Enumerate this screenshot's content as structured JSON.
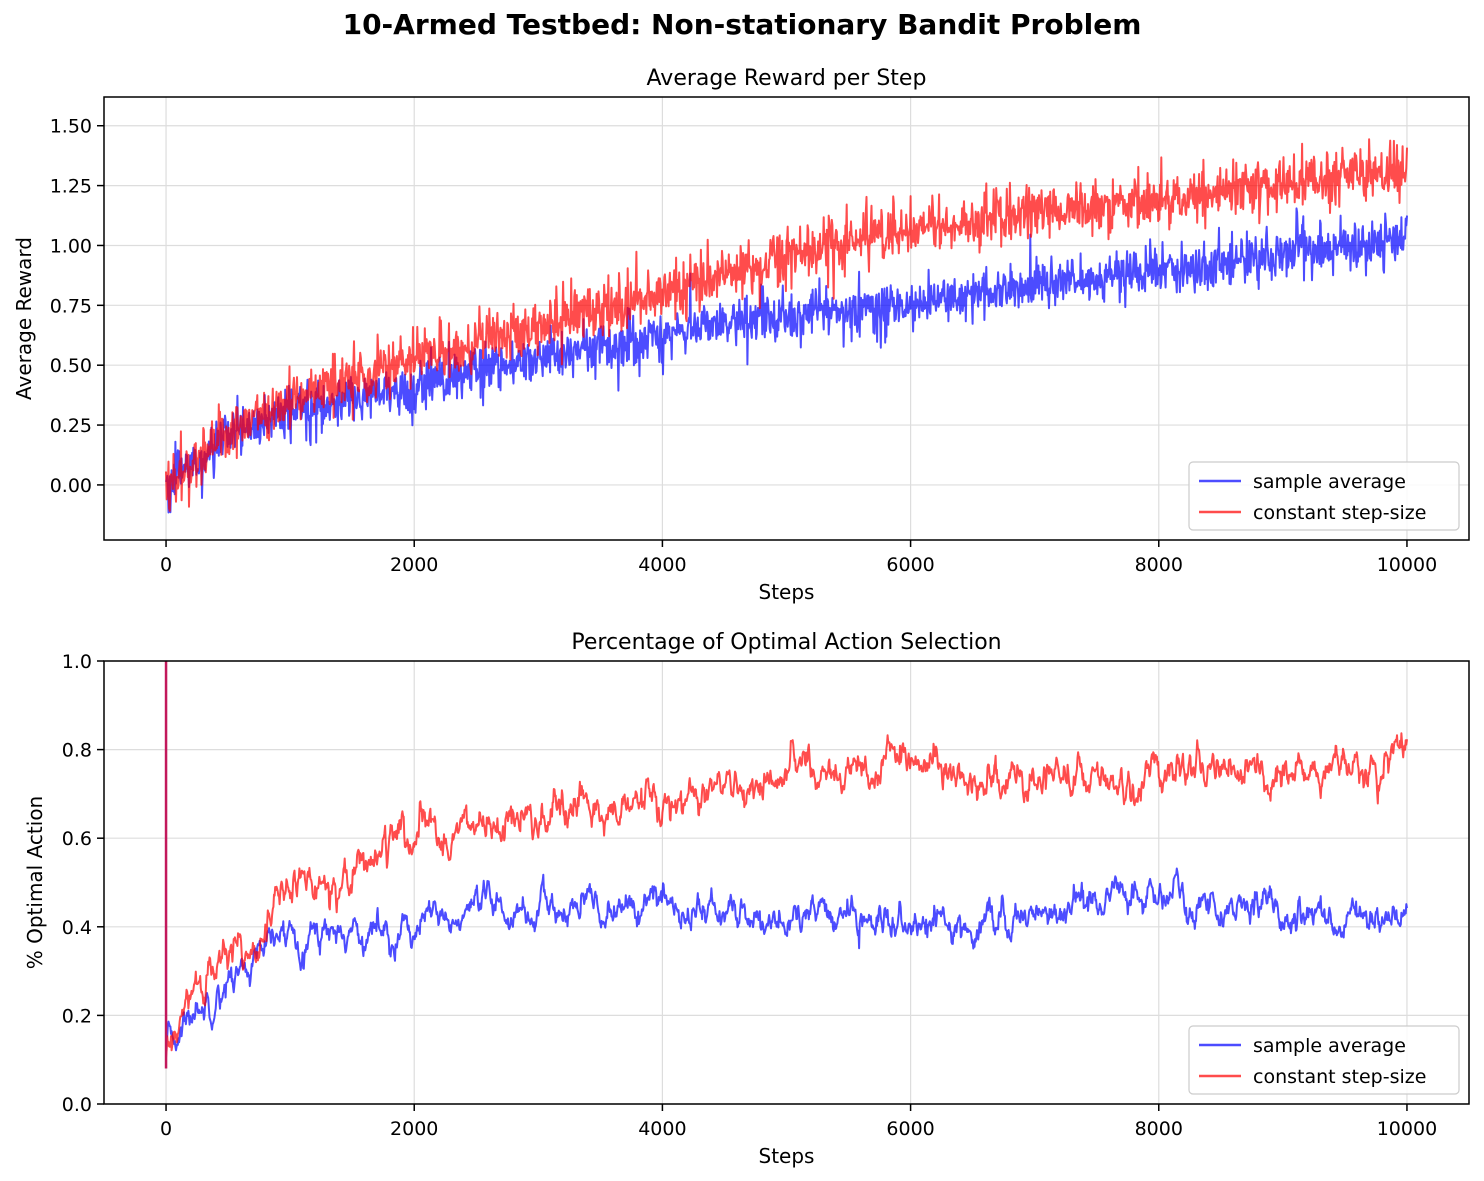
{
  "suptitle": "10-Armed Testbed: Non-stationary Bandit Problem",
  "colors": {
    "sample_average": "#0000ff",
    "constant_step_size": "#ff0000",
    "overlap": "#c2185b"
  },
  "chart_data": [
    {
      "type": "line",
      "title": "Average Reward per Step",
      "xlabel": "Steps",
      "ylabel": "Average Reward",
      "xlim": [
        -500,
        10500
      ],
      "ylim": [
        -0.23,
        1.62
      ],
      "xticks": [
        0,
        2000,
        4000,
        6000,
        8000,
        10000
      ],
      "yticks": [
        0.0,
        0.25,
        0.5,
        0.75,
        1.0,
        1.25,
        1.5
      ],
      "ytick_labels": [
        "0.00",
        "0.25",
        "0.50",
        "0.75",
        "1.00",
        "1.25",
        "1.50"
      ],
      "grid": true,
      "legend_position": "bottom-right",
      "series": [
        {
          "name": "sample average",
          "color": "#0000ff",
          "x": [
            0,
            500,
            1000,
            1500,
            2000,
            2500,
            3000,
            3500,
            4000,
            4500,
            5000,
            5500,
            6000,
            6500,
            7000,
            7500,
            8000,
            8500,
            9000,
            9500,
            10000
          ],
          "values": [
            0.0,
            0.2,
            0.3,
            0.36,
            0.4,
            0.48,
            0.53,
            0.58,
            0.63,
            0.68,
            0.7,
            0.74,
            0.76,
            0.79,
            0.84,
            0.87,
            0.9,
            0.92,
            0.97,
            1.0,
            1.03
          ],
          "noise": 0.05
        },
        {
          "name": "constant step-size",
          "color": "#ff0000",
          "x": [
            0,
            500,
            1000,
            1500,
            2000,
            2500,
            3000,
            3500,
            4000,
            4500,
            5000,
            5500,
            6000,
            6500,
            7000,
            7500,
            8000,
            8500,
            9000,
            9500,
            10000
          ],
          "values": [
            0.0,
            0.22,
            0.35,
            0.45,
            0.52,
            0.6,
            0.66,
            0.73,
            0.8,
            0.88,
            0.95,
            1.02,
            1.06,
            1.1,
            1.13,
            1.17,
            1.19,
            1.22,
            1.25,
            1.29,
            1.32
          ],
          "noise": 0.055
        }
      ]
    },
    {
      "type": "line",
      "title": "Percentage of Optimal Action Selection",
      "xlabel": "Steps",
      "ylabel": "% Optimal Action",
      "xlim": [
        -500,
        10500
      ],
      "ylim": [
        0.0,
        1.0
      ],
      "xticks": [
        0,
        2000,
        4000,
        6000,
        8000,
        10000
      ],
      "yticks": [
        0.0,
        0.2,
        0.4,
        0.6,
        0.8,
        1.0
      ],
      "ytick_labels": [
        "0.0",
        "0.2",
        "0.4",
        "0.6",
        "0.8",
        "1.0"
      ],
      "grid": true,
      "legend_position": "bottom-right",
      "series": [
        {
          "name": "sample average",
          "color": "#0000ff",
          "x": [
            0,
            250,
            500,
            750,
            1000,
            1500,
            2000,
            2500,
            2600,
            3000,
            3500,
            4000,
            4500,
            5000,
            5500,
            6000,
            6500,
            7000,
            7500,
            7700,
            8000,
            8500,
            9000,
            9500,
            10000
          ],
          "values": [
            0.12,
            0.22,
            0.28,
            0.33,
            0.39,
            0.39,
            0.4,
            0.42,
            0.44,
            0.43,
            0.44,
            0.45,
            0.43,
            0.41,
            0.43,
            0.39,
            0.41,
            0.43,
            0.46,
            0.48,
            0.47,
            0.45,
            0.45,
            0.42,
            0.44
          ],
          "noise": 0.012
        },
        {
          "name": "constant step-size",
          "color": "#ff0000",
          "x": [
            0,
            250,
            500,
            750,
            1000,
            1250,
            1500,
            1750,
            2000,
            2500,
            3000,
            3500,
            4000,
            4500,
            5000,
            5100,
            5500,
            6000,
            6500,
            7000,
            7500,
            7600,
            8000,
            8500,
            9000,
            9500,
            10000
          ],
          "values": [
            0.1,
            0.26,
            0.33,
            0.39,
            0.49,
            0.5,
            0.53,
            0.58,
            0.6,
            0.63,
            0.63,
            0.66,
            0.67,
            0.7,
            0.72,
            0.76,
            0.75,
            0.77,
            0.73,
            0.74,
            0.73,
            0.7,
            0.74,
            0.76,
            0.76,
            0.75,
            0.76
          ],
          "noise": 0.014
        }
      ],
      "annotations": [
        {
          "type": "spike",
          "x": 0,
          "from": 0.08,
          "to": 1.0
        }
      ]
    }
  ]
}
